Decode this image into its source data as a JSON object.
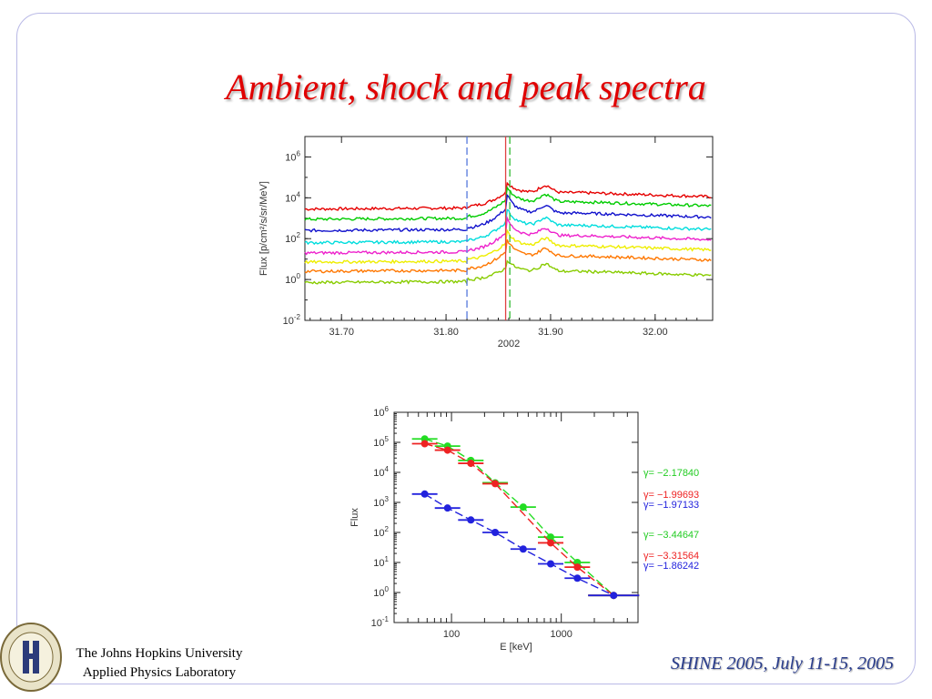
{
  "slide": {
    "title": "Ambient, shock and peak spectra",
    "footer_left_line1": "The Johns Hopkins University",
    "footer_left_line2": "Applied Physics Laboratory",
    "footer_right": "SHINE 2005, July 11-15, 2005",
    "seal_text": "THE JOHNS HOPKINS UNIVERSITY"
  },
  "chart_data": [
    {
      "type": "line",
      "xlabel": "2002",
      "ylabel": "Flux [p/cm²/s/sr/MeV]",
      "xlim": [
        31.665,
        32.055
      ],
      "ylim_log10": [
        -2,
        7
      ],
      "y_scale": "log",
      "x_ticks": [
        "31.70",
        "31.80",
        "31.90",
        "32.00"
      ],
      "x_tick_values": [
        31.7,
        31.8,
        31.9,
        32.0
      ],
      "y_tick_exponents": [
        -2,
        0,
        2,
        4,
        6
      ],
      "vertical_markers": [
        {
          "x": 31.82,
          "color": "#5577dd",
          "style": "dashed"
        },
        {
          "x": 31.857,
          "color": "#e04040",
          "style": "solid"
        },
        {
          "x": 31.861,
          "color": "#33bb33",
          "style": "dashed"
        }
      ],
      "series": [
        {
          "color": "#e60000",
          "log_base": 3.45,
          "log_shock": 4.8,
          "log_end": 3.9
        },
        {
          "color": "#00cc00",
          "log_base": 2.95,
          "log_shock": 4.55,
          "log_end": 3.45
        },
        {
          "color": "#1111cc",
          "log_base": 2.4,
          "log_shock": 4.2,
          "log_end": 2.9
        },
        {
          "color": "#00dddd",
          "log_base": 1.8,
          "log_shock": 3.5,
          "log_end": 2.3
        },
        {
          "color": "#ee22cc",
          "log_base": 1.3,
          "log_shock": 3.0,
          "log_end": 1.8
        },
        {
          "color": "#eeee00",
          "log_base": 0.85,
          "log_shock": 2.4,
          "log_end": 1.3
        },
        {
          "color": "#ff7700",
          "log_base": 0.4,
          "log_shock": 2.0,
          "log_end": 0.8
        },
        {
          "color": "#88cc00",
          "log_base": -0.15,
          "log_shock": 1.0,
          "log_end": 0.05
        }
      ]
    },
    {
      "type": "scatter",
      "xlabel": "E [keV]",
      "ylabel": "Flux",
      "x_scale": "log",
      "y_scale": "log",
      "xlim": [
        30,
        5000
      ],
      "ylim_log10": [
        -1,
        6
      ],
      "x_ticks": [
        "100",
        "1000"
      ],
      "x_tick_values": [
        100,
        1000
      ],
      "y_tick_exponents": [
        -1,
        0,
        1,
        2,
        3,
        4,
        5,
        6
      ],
      "series": [
        {
          "name": "green",
          "color": "#22dd22",
          "x": [
            57,
            92,
            150,
            250,
            450,
            800,
            1400,
            3000
          ],
          "y": [
            130000,
            75000,
            25000,
            4500,
            700,
            70,
            10,
            0.8
          ]
        },
        {
          "name": "red",
          "color": "#ee2222",
          "x": [
            57,
            92,
            150,
            250,
            800,
            1400,
            3000
          ],
          "y": [
            90000,
            55000,
            20000,
            4200,
            45,
            7,
            0.8
          ]
        },
        {
          "name": "blue",
          "color": "#2222dd",
          "x": [
            57,
            92,
            150,
            250,
            450,
            800,
            1400,
            3000
          ],
          "y": [
            1900,
            650,
            260,
            100,
            28,
            9,
            3,
            0.8
          ]
        }
      ],
      "annotations": [
        {
          "text": "γ= −2.17840",
          "color": "#22cc22"
        },
        {
          "text": "γ= −1.99693",
          "color": "#ee2222"
        },
        {
          "text": "γ= −1.97133",
          "color": "#2222dd"
        },
        {
          "text": "γ= −3.44647",
          "color": "#22cc22"
        },
        {
          "text": "γ= −3.31564",
          "color": "#ee2222"
        },
        {
          "text": "γ= −1.86242",
          "color": "#2222dd"
        }
      ]
    }
  ]
}
